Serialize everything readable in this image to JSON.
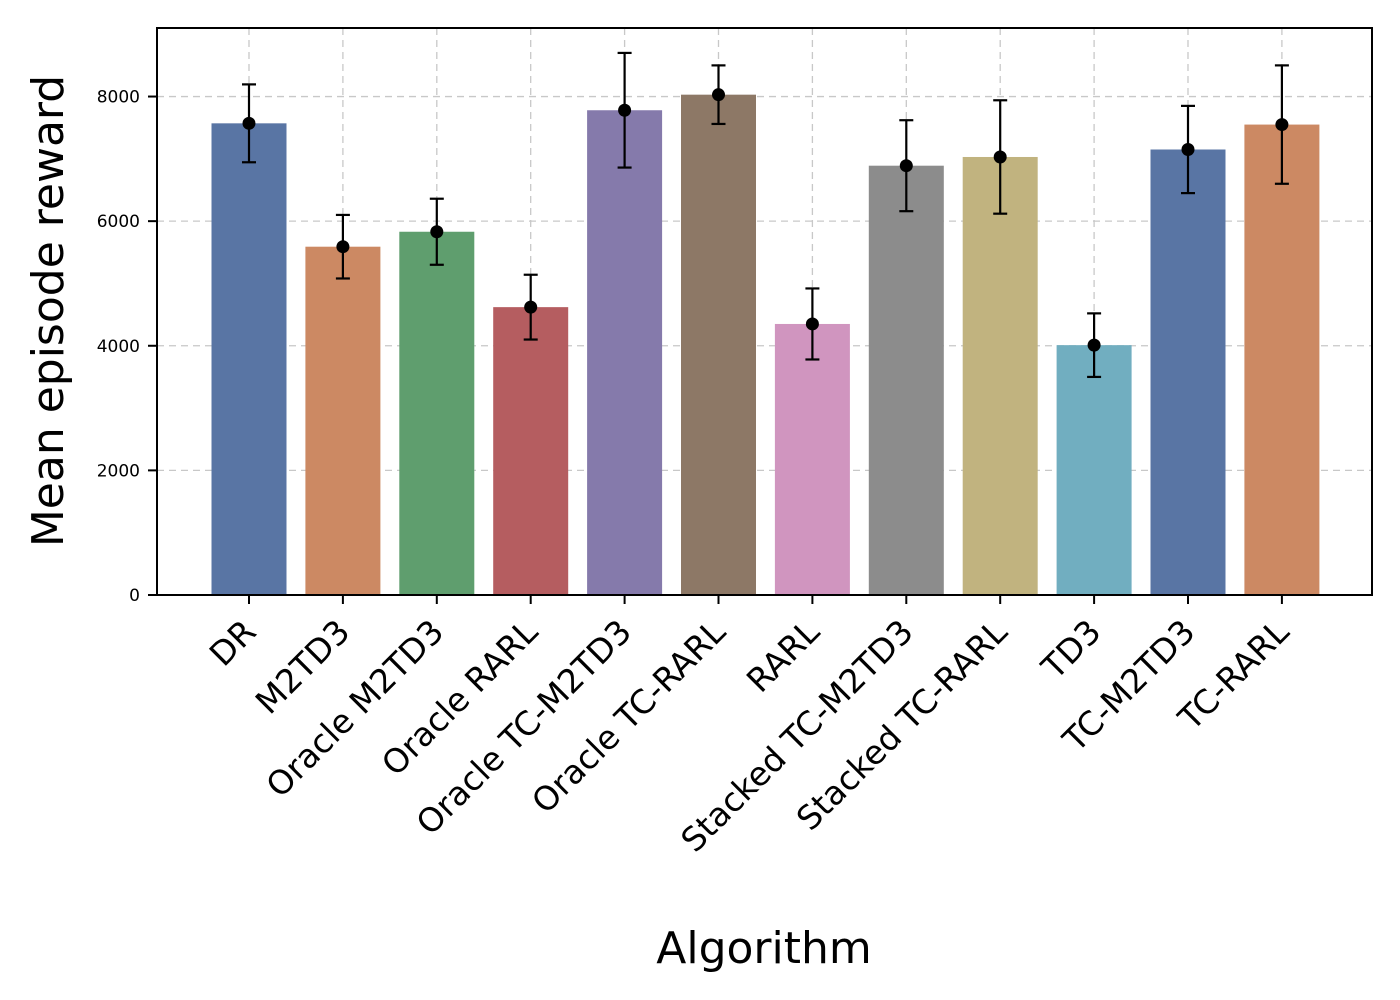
{
  "chart_data": {
    "type": "bar",
    "xlabel": "Algorithm",
    "ylabel": "Mean episode reward",
    "ylim": [
      0,
      9100
    ],
    "yticks": [
      0,
      2000,
      4000,
      6000,
      8000
    ],
    "grid": true,
    "categories": [
      "DR",
      "M2TD3",
      "Oracle M2TD3",
      "Oracle RARL",
      "Oracle TC-M2TD3",
      "Oracle TC-RARL",
      "RARL",
      "Stacked TC-M2TD3",
      "Stacked TC-RARL",
      "TD3",
      "TC-M2TD3",
      "TC-RARL"
    ],
    "values": [
      7570,
      5590,
      5830,
      4620,
      7780,
      8030,
      4350,
      6890,
      7030,
      4010,
      7150,
      7550
    ],
    "errors": [
      625,
      510,
      530,
      520,
      920,
      470,
      570,
      730,
      910,
      510,
      700,
      950
    ],
    "colors": [
      "#5975a4",
      "#cc8963",
      "#5f9e6e",
      "#b55d60",
      "#857aab",
      "#8d7866",
      "#d095bf",
      "#8c8c8c",
      "#c1b37f",
      "#71aec0",
      "#5975a4",
      "#cc8963"
    ]
  }
}
